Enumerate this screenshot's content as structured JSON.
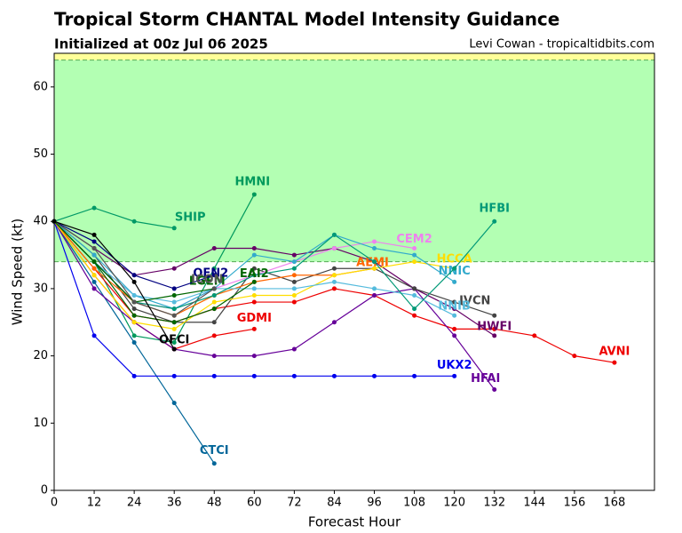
{
  "chart_data": {
    "type": "line",
    "title": "Tropical Storm CHANTAL Model Intensity Guidance",
    "subtitle": "Initialized at 00z Jul 06 2025",
    "credit": "Levi Cowan - tropicaltidbits.com",
    "x_label": "Forecast Hour",
    "y_label": "Wind Speed (kt)",
    "x": [
      0,
      12,
      24,
      36,
      48,
      60,
      72,
      84,
      96,
      108,
      120,
      132,
      144,
      156,
      168
    ],
    "xlim": [
      0,
      180
    ],
    "ylim": [
      0,
      65
    ],
    "xticks": [
      0,
      12,
      24,
      36,
      48,
      60,
      72,
      84,
      96,
      108,
      120,
      132,
      144,
      156,
      168
    ],
    "yticks": [
      0,
      10,
      20,
      30,
      40,
      50,
      60
    ],
    "bands": [
      {
        "from": 34,
        "to": 64,
        "color": "#b3ffb3"
      },
      {
        "from": 64,
        "to": 65,
        "color": "#ffff99"
      }
    ],
    "series": [
      {
        "name": "SHIP",
        "color": "#009966",
        "values": [
          40,
          42,
          40,
          39,
          null,
          null,
          null,
          null,
          null,
          null,
          null,
          null,
          null,
          null,
          null
        ]
      },
      {
        "name": "HMNI",
        "color": "#00995c",
        "values": [
          40,
          34,
          23,
          22,
          33,
          44,
          null,
          null,
          null,
          null,
          null,
          null,
          null,
          null,
          null
        ]
      },
      {
        "name": "CTCI",
        "color": "#006699",
        "values": [
          40,
          31,
          22,
          13,
          4,
          null,
          null,
          null,
          null,
          null,
          null,
          null,
          null,
          null,
          null
        ]
      },
      {
        "name": "UKX2",
        "color": "#0000ee",
        "values": [
          40,
          23,
          17,
          17,
          17,
          17,
          17,
          17,
          17,
          17,
          17,
          null,
          null,
          null,
          null
        ]
      },
      {
        "name": "AVNI",
        "color": "#ee0000",
        "values": [
          40,
          33,
          26,
          25,
          27,
          28,
          28,
          30,
          29,
          26,
          24,
          24,
          23,
          20,
          19
        ]
      },
      {
        "name": "GDMI",
        "color": "#ee0000",
        "values": [
          40,
          32,
          25,
          21,
          23,
          24,
          null,
          null,
          null,
          null,
          null,
          null,
          null,
          null,
          null
        ]
      },
      {
        "name": "HFAI",
        "color": "#660099",
        "values": [
          40,
          30,
          25,
          21,
          20,
          20,
          21,
          25,
          29,
          30,
          23,
          15,
          null,
          null,
          null
        ]
      },
      {
        "name": "HWFI",
        "color": "#660066",
        "values": [
          40,
          36,
          32,
          33,
          36,
          36,
          35,
          36,
          34,
          30,
          27,
          23,
          null,
          null,
          null
        ]
      },
      {
        "name": "IVCN",
        "color": "#444444",
        "values": [
          40,
          35,
          27,
          25,
          25,
          33,
          31,
          33,
          33,
          30,
          28,
          26,
          null,
          null,
          null
        ]
      },
      {
        "name": "CEM2",
        "color": "#ee82ee",
        "values": [
          40,
          34,
          28,
          27,
          30,
          32,
          34,
          36,
          37,
          36,
          null,
          null,
          null,
          null,
          null
        ]
      },
      {
        "name": "AEMI",
        "color": "#ff6600",
        "values": [
          40,
          33,
          28,
          26,
          29,
          31,
          32,
          32,
          33,
          null,
          null,
          null,
          null,
          null,
          null
        ]
      },
      {
        "name": "HCCA",
        "color": "#ffdd00",
        "values": [
          40,
          32,
          25,
          24,
          28,
          29,
          29,
          32,
          33,
          34,
          33,
          null,
          null,
          null,
          null
        ]
      },
      {
        "name": "NNIC",
        "color": "#33aacc",
        "values": [
          40,
          35,
          29,
          27,
          30,
          35,
          34,
          38,
          36,
          35,
          31,
          null,
          null,
          null,
          null
        ]
      },
      {
        "name": "NNIB",
        "color": "#55bbdd",
        "values": [
          40,
          34,
          29,
          28,
          30,
          30,
          30,
          31,
          30,
          29,
          26,
          null,
          null,
          null,
          null
        ]
      },
      {
        "name": "HFBI",
        "color": "#009977",
        "values": [
          40,
          34,
          28,
          27,
          29,
          32,
          33,
          38,
          34,
          27,
          33,
          40,
          null,
          null,
          null
        ]
      },
      {
        "name": "LGEM",
        "color": "#006600",
        "values": [
          40,
          34,
          28,
          29,
          30,
          null,
          null,
          null,
          null,
          null,
          null,
          null,
          null,
          null,
          null
        ]
      },
      {
        "name": "OEN2",
        "color": "#000080",
        "values": [
          40,
          37,
          32,
          30,
          32,
          null,
          null,
          null,
          null,
          null,
          null,
          null,
          null,
          null,
          null
        ]
      },
      {
        "name": "ICON",
        "color": "#555555",
        "values": [
          40,
          36,
          28,
          26,
          30,
          null,
          null,
          null,
          null,
          null,
          null,
          null,
          null,
          null,
          null
        ]
      },
      {
        "name": "EAI2",
        "color": "#006600",
        "values": [
          40,
          34,
          26,
          25,
          27,
          31,
          null,
          null,
          null,
          null,
          null,
          null,
          null,
          null,
          null
        ]
      },
      {
        "name": "OFCI",
        "color": "#000000",
        "values": [
          40,
          38,
          31,
          21,
          null,
          null,
          null,
          null,
          null,
          null,
          null,
          null,
          null,
          null,
          null
        ]
      }
    ]
  }
}
